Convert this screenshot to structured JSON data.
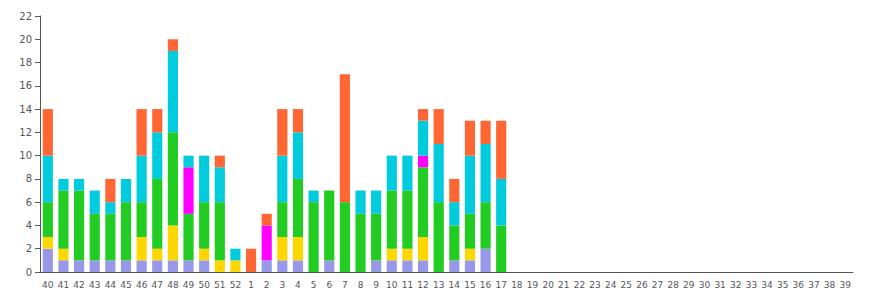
{
  "chart_data": {
    "type": "bar",
    "stacked": true,
    "grid": false,
    "categories": [
      "40",
      "41",
      "42",
      "43",
      "44",
      "45",
      "46",
      "47",
      "48",
      "49",
      "50",
      "51",
      "52",
      "1",
      "2",
      "3",
      "4",
      "5",
      "6",
      "7",
      "8",
      "9",
      "10",
      "11",
      "12",
      "13",
      "14",
      "15",
      "16",
      "17",
      "18",
      "19",
      "20",
      "21",
      "22",
      "23",
      "24",
      "25",
      "26",
      "27",
      "28",
      "29",
      "30",
      "31",
      "32",
      "33",
      "34",
      "35",
      "36",
      "37",
      "38",
      "39"
    ],
    "series": [
      {
        "color": "#9898E8",
        "values": [
          2,
          1,
          1,
          1,
          1,
          1,
          1,
          1,
          1,
          1,
          1,
          0,
          0,
          0,
          1,
          1,
          1,
          0,
          1,
          0,
          0,
          1,
          1,
          1,
          1,
          0,
          1,
          1,
          2,
          0,
          0,
          0,
          0,
          0,
          0,
          0,
          0,
          0,
          0,
          0,
          0,
          0,
          0,
          0,
          0,
          0,
          0,
          0,
          0,
          0,
          0,
          0
        ]
      },
      {
        "color": "#FFD700",
        "values": [
          1,
          1,
          0,
          0,
          0,
          0,
          2,
          1,
          3,
          0,
          1,
          1,
          1,
          0,
          0,
          2,
          2,
          0,
          0,
          0,
          0,
          0,
          1,
          1,
          2,
          0,
          0,
          1,
          0,
          0,
          0,
          0,
          0,
          0,
          0,
          0,
          0,
          0,
          0,
          0,
          0,
          0,
          0,
          0,
          0,
          0,
          0,
          0,
          0,
          0,
          0,
          0
        ]
      },
      {
        "color": "#22CC22",
        "values": [
          3,
          5,
          6,
          4,
          4,
          5,
          3,
          6,
          8,
          4,
          4,
          5,
          0,
          0,
          0,
          3,
          5,
          6,
          6,
          6,
          5,
          4,
          5,
          5,
          6,
          6,
          3,
          3,
          4,
          4,
          0,
          0,
          0,
          0,
          0,
          0,
          0,
          0,
          0,
          0,
          0,
          0,
          0,
          0,
          0,
          0,
          0,
          0,
          0,
          0,
          0,
          0
        ]
      },
      {
        "color": "#FF00FF",
        "values": [
          0,
          0,
          0,
          0,
          0,
          0,
          0,
          0,
          0,
          4,
          0,
          0,
          0,
          0,
          3,
          0,
          0,
          0,
          0,
          0,
          0,
          0,
          0,
          0,
          1,
          0,
          0,
          0,
          0,
          0,
          0,
          0,
          0,
          0,
          0,
          0,
          0,
          0,
          0,
          0,
          0,
          0,
          0,
          0,
          0,
          0,
          0,
          0,
          0,
          0,
          0,
          0
        ]
      },
      {
        "color": "#00CCDD",
        "values": [
          4,
          1,
          1,
          2,
          1,
          2,
          4,
          4,
          7,
          1,
          4,
          3,
          1,
          0,
          0,
          4,
          4,
          1,
          0,
          0,
          2,
          2,
          3,
          3,
          3,
          5,
          2,
          5,
          5,
          4,
          0,
          0,
          0,
          0,
          0,
          0,
          0,
          0,
          0,
          0,
          0,
          0,
          0,
          0,
          0,
          0,
          0,
          0,
          0,
          0,
          0,
          0
        ]
      },
      {
        "color": "#FF6633",
        "values": [
          4,
          0,
          0,
          0,
          2,
          0,
          4,
          2,
          1,
          0,
          0,
          1,
          0,
          2,
          1,
          4,
          2,
          0,
          0,
          11,
          0,
          0,
          0,
          0,
          1,
          3,
          2,
          3,
          2,
          5,
          0,
          0,
          0,
          0,
          0,
          0,
          0,
          0,
          0,
          0,
          0,
          0,
          0,
          0,
          0,
          0,
          0,
          0,
          0,
          0,
          0,
          0
        ]
      }
    ],
    "ylim": [
      0,
      22
    ],
    "yticks": [
      0,
      2,
      4,
      6,
      8,
      10,
      12,
      14,
      16,
      18,
      20,
      22
    ]
  }
}
